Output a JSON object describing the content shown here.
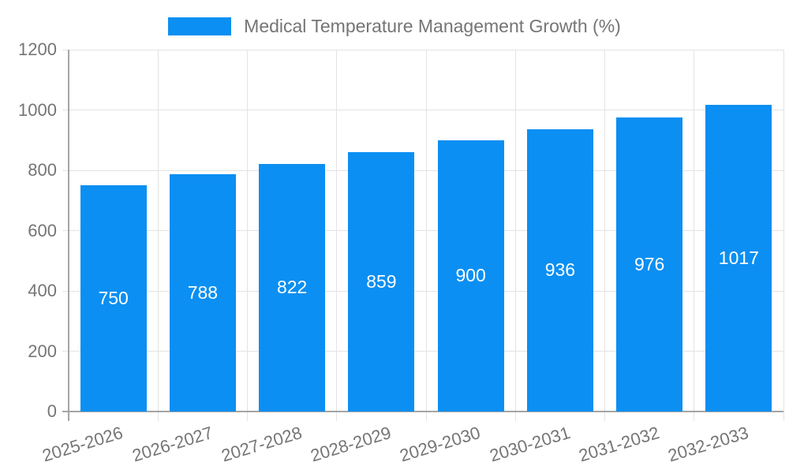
{
  "legend": {
    "label": "Medical Temperature Management Growth (%)"
  },
  "chart_data": {
    "type": "bar",
    "title": "Medical Temperature Management Growth (%)",
    "categories": [
      "2025-2026",
      "2026-2027",
      "2027-2028",
      "2028-2029",
      "2029-2030",
      "2030-2031",
      "2031-2032",
      "2032-2033"
    ],
    "values": [
      750,
      788,
      822,
      859,
      900,
      936,
      976,
      1017
    ],
    "xlabel": "",
    "ylabel": "",
    "ylim": [
      0,
      1200
    ],
    "yticks": [
      0,
      200,
      400,
      600,
      800,
      1000,
      1200
    ],
    "grid": true,
    "legend_position": "top",
    "bar_color": "#0b8ff2",
    "bar_label_color": "#ffffff",
    "tick_label_color": "#757575",
    "grid_color": "#e3e3e3",
    "axis_color": "#a5a5a5"
  }
}
